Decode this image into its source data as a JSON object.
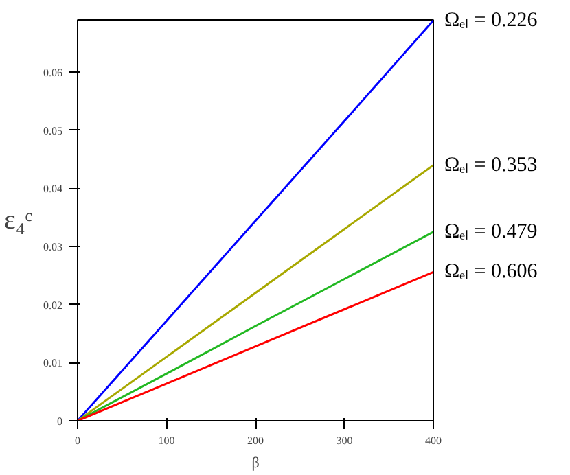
{
  "chart_data": {
    "type": "line",
    "xlabel": "β",
    "ylabel": "ε₄ᶜ",
    "x": [
      0,
      100,
      200,
      300,
      400
    ],
    "series": [
      {
        "name": "Ωₑₗ = 0.226",
        "color": "#0000ff",
        "values": [
          0,
          0.0172,
          0.0344,
          0.0516,
          0.0689
        ]
      },
      {
        "name": "Ωₑₗ = 0.353",
        "color": "#a8a800",
        "values": [
          0,
          0.011,
          0.022,
          0.033,
          0.044
        ]
      },
      {
        "name": "Ωₑₗ = 0.479",
        "color": "#22b822",
        "values": [
          0,
          0.0081,
          0.0163,
          0.0244,
          0.0325
        ]
      },
      {
        "name": "Ωₑₗ = 0.606",
        "color": "#ff0000",
        "values": [
          0,
          0.0064,
          0.0128,
          0.0192,
          0.0256
        ]
      }
    ],
    "xlim": [
      0,
      400
    ],
    "xticks": [
      0,
      100,
      200,
      300,
      400
    ],
    "ylim": [
      0,
      0.069
    ],
    "yticks": [
      0,
      0.01,
      0.02,
      0.03,
      0.04,
      0.05,
      0.06
    ],
    "grid": false,
    "marker": "none",
    "line_style": "solid"
  }
}
